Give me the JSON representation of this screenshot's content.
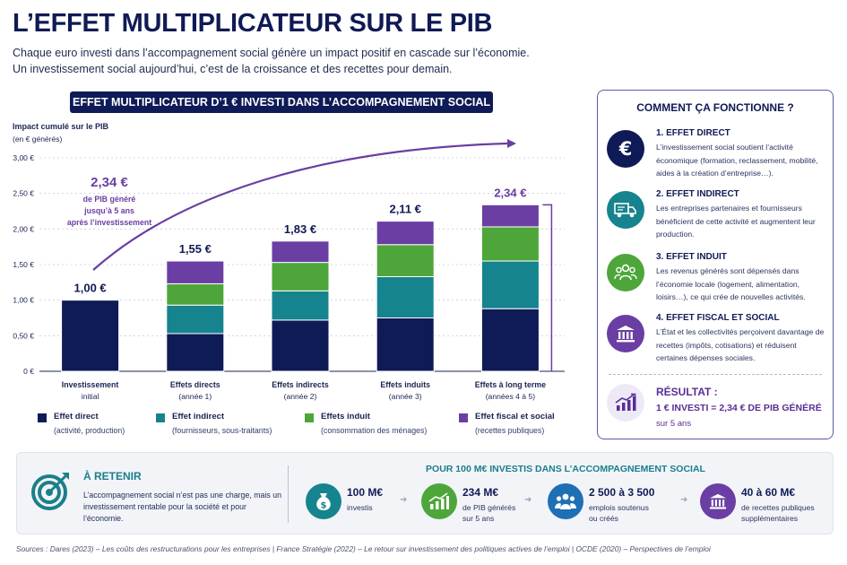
{
  "title": "L’EFFET MULTIPLICATEUR SUR LE PIB",
  "subtitle_1": "Chaque euro investi dans l’accompagnement social génère un impact positif en cascade sur l’économie.",
  "subtitle_2": "Un investissement social aujourd’hui, c’est de la croissance et des recettes pour demain.",
  "banner": "EFFET MULTIPLICATEUR D’1 € INVESTI DANS L’ACCOMPAGNEMENT SOCIAL",
  "chart_data": {
    "type": "bar",
    "stacked": true,
    "ylabel": "Impact cumulé sur le PIB",
    "yunit": "(en € générés)",
    "ylim": [
      0,
      3
    ],
    "yticks": [
      "0 €",
      "0,50 €",
      "1,00 €",
      "1,50 €",
      "2,00 €",
      "2,50 €",
      "3,00 €"
    ],
    "grid": true,
    "categories": [
      [
        "Investissement",
        "initial"
      ],
      [
        "Effets directs",
        "(année 1)"
      ],
      [
        "Effets indirects",
        "(année 2)"
      ],
      [
        "Effets induits",
        "(année 3)"
      ],
      [
        "Effets à long terme",
        "(années 4 à 5)"
      ]
    ],
    "totals": [
      "1,00 €",
      "1,55 €",
      "1,83 €",
      "2,11 €",
      "2,34 €"
    ],
    "series": [
      {
        "name": "Effet direct",
        "color": "#0f1b57",
        "values": [
          1.0,
          0.53,
          0.72,
          0.75,
          0.88
        ]
      },
      {
        "name": "Effet indirect",
        "color": "#16848e",
        "values": [
          0,
          0.4,
          0.41,
          0.58,
          0.67
        ]
      },
      {
        "name": "Effets induit",
        "color": "#4ea63a",
        "values": [
          0,
          0.3,
          0.4,
          0.45,
          0.48
        ]
      },
      {
        "name": "Effet fiscal et social",
        "color": "#6a3ea3",
        "values": [
          0,
          0.32,
          0.3,
          0.33,
          0.31
        ]
      }
    ],
    "callout": {
      "value": "2,34 €",
      "lines": [
        "de PIB généré",
        "jusqu’à 5 ans",
        "après l’investissement"
      ]
    }
  },
  "legend": [
    {
      "name": "Effet direct",
      "desc": "(activité, production)",
      "color": "#0f1b57"
    },
    {
      "name": "Effet indirect",
      "desc": "(fournisseurs, sous-traitants)",
      "color": "#16848e"
    },
    {
      "name": "Effets induit",
      "desc": "(consommation des ménages)",
      "color": "#4ea63a"
    },
    {
      "name": "Effet fiscal et social",
      "desc": "(recettes publiques)",
      "color": "#6a3ea3"
    }
  ],
  "panel": {
    "title": "COMMENT ÇA FONCTIONNE ?",
    "steps": [
      {
        "title": "1. EFFET DIRECT",
        "text": "L’investissement social soutient l’activité économique (formation, reclassement, mobilité, aides à la création d’entreprise…).",
        "icon": "euro-icon",
        "color": "#0f1b57"
      },
      {
        "title": "2. EFFET INDIRECT",
        "text": "Les entreprises partenaires et fournisseurs bénéficient de cette activité et augmentent leur production.",
        "icon": "truck-icon",
        "color": "#16848e"
      },
      {
        "title": "3. EFFET INDUIT",
        "text": "Les revenus générés sont dépensés dans l’économie locale (logement, alimentation, loisirs…), ce qui crée de nouvelles activités.",
        "icon": "people-icon",
        "color": "#4ea63a"
      },
      {
        "title": "4. EFFET FISCAL ET SOCIAL",
        "text": "L’État et les collectivités perçoivent davantage de recettes (impôts, cotisations) et réduisent certaines dépenses sociales.",
        "icon": "institution-icon",
        "color": "#6a3ea3"
      }
    ],
    "result_title": "RÉSULTAT :",
    "result_line": "1 € INVESTI = 2,34 € DE PIB GÉNÉRÉ",
    "result_sub": "sur 5 ans"
  },
  "bottom": {
    "retenir_title": "À RETENIR",
    "retenir_text": "L’accompagnement social n’est pas une charge, mais un investissement rentable pour la société et pour l’économie.",
    "pour_title": "POUR 100 M€ INVESTIS DANS L’ACCOMPAGNEMENT SOCIAL",
    "stats": [
      {
        "value": "100 M€",
        "label": "investis",
        "color": "#16848e",
        "icon": "money-bag-icon"
      },
      {
        "value": "234 M€",
        "label": "de PIB générés\nsur 5 ans",
        "color": "#4ea63a",
        "icon": "growth-chart-icon"
      },
      {
        "value": "2 500 à 3 500",
        "label": "emplois soutenus\nou créés",
        "color": "#1f6fb5",
        "icon": "people-icon"
      },
      {
        "value": "40 à 60 M€",
        "label": "de recettes publiques\nsupplémentaires",
        "color": "#6a3ea3",
        "icon": "institution-icon"
      }
    ]
  },
  "sources": "Sources : Dares (2023) – Les coûts des restructurations pour les entreprises | France Stratégie (2022) – Le retour sur investissement des politiques actives de l’emploi | OCDE (2020) – Perspectives de l’emploi"
}
